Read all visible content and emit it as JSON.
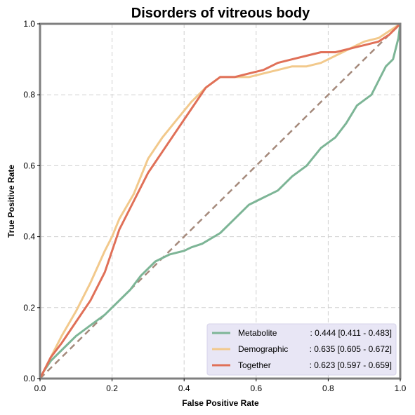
{
  "chart_data": {
    "type": "line",
    "title": "Disorders of vitreous body",
    "xlabel": "False Positive Rate",
    "ylabel": "True Positive Rate",
    "xlim": [
      0,
      1
    ],
    "ylim": [
      0,
      1
    ],
    "x_ticks": [
      "0.0",
      "0.2",
      "0.4",
      "0.6",
      "0.8",
      "1.0"
    ],
    "y_ticks": [
      "0.0",
      "0.2",
      "0.4",
      "0.6",
      "0.8",
      "1.0"
    ],
    "grid": true,
    "legend_position": "lower-right",
    "diagonal": {
      "color": "#a58a7c",
      "style": "dashed",
      "values": [
        [
          0,
          0
        ],
        [
          1,
          1
        ]
      ]
    },
    "series": [
      {
        "name": "Metabolite",
        "auc_text": ": 0.444 [0.411 - 0.483]",
        "color": "#7db596",
        "values": [
          [
            0,
            0
          ],
          [
            0.01,
            0.02
          ],
          [
            0.03,
            0.05
          ],
          [
            0.06,
            0.08
          ],
          [
            0.1,
            0.12
          ],
          [
            0.14,
            0.15
          ],
          [
            0.18,
            0.18
          ],
          [
            0.2,
            0.2
          ],
          [
            0.25,
            0.25
          ],
          [
            0.28,
            0.29
          ],
          [
            0.32,
            0.33
          ],
          [
            0.36,
            0.35
          ],
          [
            0.4,
            0.36
          ],
          [
            0.42,
            0.37
          ],
          [
            0.45,
            0.38
          ],
          [
            0.5,
            0.41
          ],
          [
            0.54,
            0.45
          ],
          [
            0.58,
            0.49
          ],
          [
            0.62,
            0.51
          ],
          [
            0.66,
            0.53
          ],
          [
            0.7,
            0.57
          ],
          [
            0.74,
            0.6
          ],
          [
            0.78,
            0.65
          ],
          [
            0.82,
            0.68
          ],
          [
            0.85,
            0.72
          ],
          [
            0.88,
            0.77
          ],
          [
            0.92,
            0.8
          ],
          [
            0.94,
            0.84
          ],
          [
            0.96,
            0.88
          ],
          [
            0.98,
            0.9
          ],
          [
            0.995,
            0.96
          ],
          [
            1,
            1
          ]
        ]
      },
      {
        "name": "Demographic",
        "auc_text": ": 0.635 [0.605 - 0.672]",
        "color": "#f2c98c",
        "values": [
          [
            0,
            0
          ],
          [
            0.01,
            0.02
          ],
          [
            0.03,
            0.06
          ],
          [
            0.06,
            0.12
          ],
          [
            0.1,
            0.19
          ],
          [
            0.14,
            0.27
          ],
          [
            0.18,
            0.36
          ],
          [
            0.2,
            0.4
          ],
          [
            0.22,
            0.45
          ],
          [
            0.26,
            0.52
          ],
          [
            0.3,
            0.62
          ],
          [
            0.34,
            0.68
          ],
          [
            0.38,
            0.73
          ],
          [
            0.42,
            0.78
          ],
          [
            0.46,
            0.82
          ],
          [
            0.5,
            0.85
          ],
          [
            0.54,
            0.85
          ],
          [
            0.58,
            0.85
          ],
          [
            0.62,
            0.86
          ],
          [
            0.66,
            0.87
          ],
          [
            0.7,
            0.88
          ],
          [
            0.74,
            0.88
          ],
          [
            0.78,
            0.89
          ],
          [
            0.82,
            0.91
          ],
          [
            0.86,
            0.93
          ],
          [
            0.9,
            0.95
          ],
          [
            0.94,
            0.96
          ],
          [
            0.97,
            0.98
          ],
          [
            1,
            1
          ]
        ]
      },
      {
        "name": "Together",
        "auc_text": ": 0.623 [0.597 - 0.659]",
        "color": "#e07058",
        "values": [
          [
            0,
            0
          ],
          [
            0.01,
            0.02
          ],
          [
            0.03,
            0.06
          ],
          [
            0.06,
            0.1
          ],
          [
            0.1,
            0.16
          ],
          [
            0.14,
            0.22
          ],
          [
            0.18,
            0.3
          ],
          [
            0.2,
            0.36
          ],
          [
            0.22,
            0.42
          ],
          [
            0.26,
            0.5
          ],
          [
            0.3,
            0.58
          ],
          [
            0.34,
            0.64
          ],
          [
            0.38,
            0.7
          ],
          [
            0.42,
            0.76
          ],
          [
            0.46,
            0.82
          ],
          [
            0.5,
            0.85
          ],
          [
            0.54,
            0.85
          ],
          [
            0.58,
            0.86
          ],
          [
            0.62,
            0.87
          ],
          [
            0.66,
            0.89
          ],
          [
            0.7,
            0.9
          ],
          [
            0.74,
            0.91
          ],
          [
            0.78,
            0.92
          ],
          [
            0.82,
            0.92
          ],
          [
            0.86,
            0.93
          ],
          [
            0.9,
            0.94
          ],
          [
            0.94,
            0.95
          ],
          [
            0.97,
            0.97
          ],
          [
            1,
            1
          ]
        ]
      }
    ]
  }
}
